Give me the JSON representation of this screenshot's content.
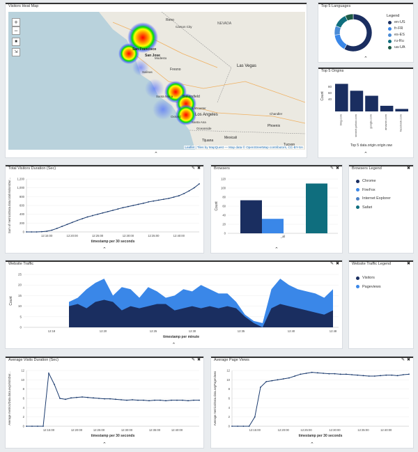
{
  "colors": {
    "dark": "#1a2e60",
    "mid": "#3a87e8",
    "light": "#4a90d9",
    "teal": "#0f6e7e",
    "line": "#1a3a6e"
  },
  "heatmap": {
    "title": "Visitors Heat Map",
    "zoom_in": "+",
    "zoom_out": "−",
    "attribution": "Leaflet | Tiles by MapQuest — Map data © OpenStreetMap contributors, CC-BY-SA",
    "places": [
      "Reno",
      "NEVADA",
      "Carson City",
      "San Francisco",
      "San Jose",
      "Fresno",
      "Modesto",
      "Salinas",
      "Las Vegas",
      "Bakersfield",
      "Santa Maria",
      "Lancaster",
      "Los Angeles",
      "Oxnard",
      "Santa Ana",
      "Oceanside",
      "Tijuana",
      "Mexicali",
      "Phoenix",
      "Tucson",
      "Chandler"
    ]
  },
  "languages": {
    "title": "Top 5 Languages",
    "legend_title": "Legend",
    "legend": [
      {
        "label": "en-US",
        "color": "#1a2e60"
      },
      {
        "label": "fr-FR",
        "color": "#3a87e8"
      },
      {
        "label": "es-ES",
        "color": "#4a8bd6"
      },
      {
        "label": "ru-Ru",
        "color": "#0f6e7e"
      },
      {
        "label": "ua-UA",
        "color": "#1d5a45"
      }
    ],
    "chart_data": {
      "type": "pie",
      "labels": [
        "en-US",
        "fr-FR",
        "es-ES",
        "ru-Ru",
        "ua-UA"
      ],
      "values": [
        58,
        15,
        8,
        12,
        7
      ],
      "donut": true
    }
  },
  "origins": {
    "title": "Top 5 Origins",
    "chart_data": {
      "type": "bar",
      "categories": [
        "bing.com",
        "search.yahoo.com",
        "google.com",
        "amazon.com",
        "facebook.com"
      ],
      "values": [
        88,
        66,
        50,
        18,
        8
      ],
      "ylabel": "Count",
      "xlabel": "Top 5 data.origin.origin.raw",
      "yticks": [
        40,
        60,
        80
      ],
      "ylim": [
        0,
        100
      ]
    }
  },
  "total_visitors": {
    "title": "Total Visitors Duration (Sec)",
    "chart_data": {
      "type": "line",
      "x": [
        "12:15:00",
        "12:16:00",
        "12:17:00",
        "12:17:30",
        "12:18:00",
        "12:19:00",
        "12:20:00",
        "12:21:00",
        "12:22:00",
        "12:23:00",
        "12:24:00",
        "12:25:00",
        "12:26:00",
        "12:27:00",
        "12:28:00",
        "12:29:00",
        "12:30:00",
        "12:31:00",
        "12:32:00",
        "12:33:00",
        "12:34:00",
        "12:35:00",
        "12:36:00",
        "12:37:00",
        "12:38:00",
        "12:39:00",
        "12:40:00",
        "12:41:00",
        "12:42:00",
        "12:43:00",
        "12:44:00",
        "12:45:00",
        "12:46:00",
        "12:47:00",
        "12:48:00"
      ],
      "values": [
        0,
        0,
        0,
        5,
        15,
        40,
        80,
        125,
        170,
        215,
        260,
        300,
        340,
        370,
        400,
        430,
        460,
        490,
        520,
        550,
        575,
        600,
        625,
        650,
        680,
        700,
        720,
        740,
        760,
        790,
        820,
        870,
        930,
        1000,
        1090
      ],
      "yticks": [
        0,
        200,
        400,
        600,
        800,
        "1,000",
        "1,200"
      ],
      "ylim": [
        0,
        1200
      ],
      "xticks": [
        "12:15:00",
        "12:20:00",
        "12:25:00",
        "12:30:00",
        "12:35:00",
        "12:40:00"
      ],
      "ylabel": "Sum of metrics/Data.data.totalVisitorsDur...",
      "xlabel": "timestamp per 30 seconds"
    }
  },
  "browsers": {
    "title": "Browsers",
    "chart_data": {
      "type": "bar",
      "categories": [
        "_all"
      ],
      "series": [
        {
          "name": "Chrome",
          "value": 73,
          "color": "#1a2e60"
        },
        {
          "name": "FireFox",
          "value": 32,
          "color": "#3a87e8"
        },
        {
          "name": "Safari",
          "value": 110,
          "color": "#0f6e7e"
        }
      ],
      "yticks": [
        0,
        20,
        40,
        60,
        80,
        100,
        120
      ],
      "ylim": [
        0,
        120
      ],
      "ylabel": "Count",
      "xtick": "_all"
    }
  },
  "browsers_legend": {
    "title": "Browsers Legend",
    "items": [
      {
        "label": "Chrome",
        "color": "#1a2e60"
      },
      {
        "label": "FireFox",
        "color": "#3a87e8"
      },
      {
        "label": "Internet Explorer",
        "color": "#4a7fc4"
      },
      {
        "label": "Safari",
        "color": "#0f6e7e"
      }
    ]
  },
  "traffic": {
    "title": "Website Traffic",
    "chart_data": {
      "type": "area",
      "x": [
        "12:18",
        "12:19",
        "12:20",
        "12:21",
        "12:22",
        "12:23",
        "12:24",
        "12:25",
        "12:26",
        "12:27",
        "12:28",
        "12:29",
        "12:30",
        "12:31",
        "12:32",
        "12:33",
        "12:34",
        "12:35",
        "12:36",
        "12:37",
        "12:38",
        "12:39",
        "12:40",
        "12:41",
        "12:42",
        "12:43",
        "12:44",
        "12:45",
        "12:46",
        "12:47",
        "12:48"
      ],
      "series": [
        {
          "name": "Visitors",
          "values": [
            10,
            11,
            9,
            12,
            13,
            12,
            8,
            10,
            9,
            10,
            11,
            11,
            8,
            9,
            10,
            9,
            10,
            9,
            10,
            9,
            5,
            2,
            0,
            9,
            11,
            10,
            9,
            8,
            7,
            6,
            8
          ],
          "color": "#1a2e60"
        },
        {
          "name": "Pageviews",
          "values": [
            12,
            14,
            18,
            21,
            23,
            15,
            19,
            18,
            14,
            19,
            17,
            14,
            15,
            18,
            17,
            20,
            18,
            16,
            16,
            12,
            6,
            3,
            2,
            18,
            23,
            20,
            18,
            17,
            16,
            14,
            18
          ],
          "color": "#3a87e8"
        }
      ],
      "yticks": [
        0,
        5,
        10,
        15,
        20,
        25
      ],
      "ylim": [
        0,
        25
      ],
      "xticks": [
        "12:18",
        "12:20",
        "12:25",
        "12:30",
        "12:35",
        "12:40",
        "12:48"
      ],
      "ylabel": "Count",
      "xlabel": "timestamp per minute"
    }
  },
  "traffic_legend": {
    "title": "Website Traffic Legend",
    "items": [
      {
        "label": "Visitors",
        "color": "#1a2e60"
      },
      {
        "label": "Pageviews",
        "color": "#3a87e8"
      }
    ]
  },
  "avg_visits": {
    "title": "Average Visits Duration (Sec)",
    "chart_data": {
      "type": "line",
      "x": [
        "12:15:00",
        "12:16:00",
        "12:17:00",
        "12:17:30",
        "12:18:00",
        "12:19:00",
        "12:20:00",
        "12:21:00",
        "12:22:00",
        "12:23:00",
        "12:24:00",
        "12:25:00",
        "12:26:00",
        "12:27:00",
        "12:28:00",
        "12:29:00",
        "12:30:00",
        "12:31:00",
        "12:32:00",
        "12:33:00",
        "12:34:00",
        "12:35:00",
        "12:36:00",
        "12:37:00",
        "12:38:00",
        "12:39:00",
        "12:40:00",
        "12:41:00",
        "12:42:00",
        "12:43:00",
        "12:44:00",
        "12:45:00"
      ],
      "values": [
        0,
        0,
        0,
        0,
        11.4,
        9,
        6,
        5.8,
        6.1,
        6.2,
        6.3,
        6.2,
        6.1,
        6.0,
        5.9,
        5.9,
        5.8,
        5.7,
        5.6,
        5.7,
        5.6,
        5.6,
        5.5,
        5.6,
        5.6,
        5.5,
        5.6,
        5.6,
        5.6,
        5.5,
        5.6,
        5.6
      ],
      "yticks": [
        0,
        2,
        4,
        6,
        8,
        10,
        12
      ],
      "ylim": [
        0,
        12
      ],
      "xticks": [
        "12:15:00",
        "12:20:00",
        "12:25:00",
        "12:30:00",
        "12:35:00",
        "12:40:00"
      ],
      "ylabel": "Average metrics/Data.data.avgVisitsDur...",
      "xlabel": "timestamp per 30 seconds"
    }
  },
  "avg_pages": {
    "title": "Average Page Views",
    "chart_data": {
      "type": "line",
      "x": [
        "12:15:00",
        "12:16:00",
        "12:17:00",
        "12:17:30",
        "12:18:00",
        "12:19:00",
        "12:20:00",
        "12:21:00",
        "12:22:00",
        "12:23:00",
        "12:24:00",
        "12:25:00",
        "12:26:00",
        "12:27:00",
        "12:28:00",
        "12:29:00",
        "12:30:00",
        "12:31:00",
        "12:32:00",
        "12:33:00",
        "12:34:00",
        "12:35:00",
        "12:36:00",
        "12:37:00",
        "12:38:00",
        "12:39:00",
        "12:40:00",
        "12:41:00",
        "12:42:00",
        "12:43:00",
        "12:44:00",
        "12:45:00"
      ],
      "values": [
        0,
        0,
        0,
        0,
        2,
        8.4,
        9.6,
        9.8,
        10,
        10.2,
        10.4,
        10.8,
        11.2,
        11.4,
        11.6,
        11.5,
        11.4,
        11.3,
        11.3,
        11.2,
        11.2,
        11.1,
        11.0,
        10.9,
        10.8,
        10.8,
        10.9,
        11.0,
        11.0,
        10.9,
        11.1,
        11.2
      ],
      "yticks": [
        0,
        2,
        4,
        6,
        8,
        10,
        12
      ],
      "ylim": [
        0,
        12
      ],
      "xticks": [
        "12:15:00",
        "12:20:00",
        "12:25:00",
        "12:30:00",
        "12:35:00",
        "12:40:00"
      ],
      "ylabel": "Average metrics/Data.data.avgPageViews",
      "xlabel": "timestamp per 30 seconds"
    }
  }
}
